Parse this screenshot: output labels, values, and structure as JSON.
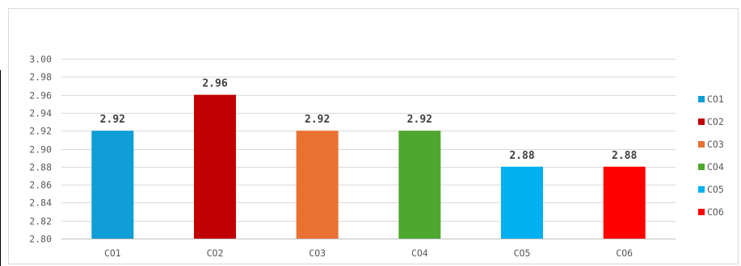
{
  "chart_data": {
    "type": "bar",
    "title": "",
    "xlabel": "",
    "ylabel": "",
    "categories": [
      "CO1",
      "CO2",
      "CO3",
      "CO4",
      "CO5",
      "CO6"
    ],
    "values": [
      2.92,
      2.96,
      2.92,
      2.92,
      2.88,
      2.88
    ],
    "data_labels": [
      "2.92",
      "2.96",
      "2.92",
      "2.92",
      "2.88",
      "2.88"
    ],
    "colors": [
      "#0f9ed5",
      "#c00000",
      "#e97132",
      "#4ea72e",
      "#00b0f0",
      "#ff0000"
    ],
    "ylim": [
      2.8,
      3.0
    ],
    "yticks": [
      2.8,
      2.82,
      2.84,
      2.86,
      2.88,
      2.9,
      2.92,
      2.94,
      2.96,
      2.98,
      3.0
    ],
    "ytick_labels": [
      "2.80",
      "2.82",
      "2.84",
      "2.86",
      "2.88",
      "2.90",
      "2.92",
      "2.94",
      "2.96",
      "2.98",
      "3.00"
    ],
    "grid": true,
    "legend": {
      "position": "right",
      "entries": [
        "CO1",
        "CO2",
        "CO3",
        "CO4",
        "CO5",
        "CO6"
      ]
    }
  }
}
